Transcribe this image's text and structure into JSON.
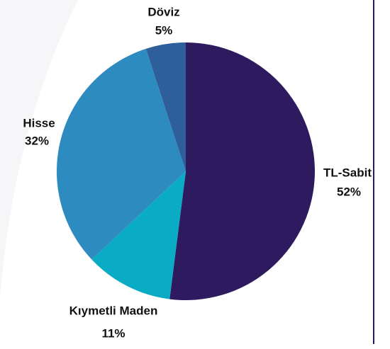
{
  "chart_data": {
    "type": "pie",
    "categories": [
      "TL-Sabit",
      "Kıymetli Maden",
      "Hisse",
      "Döviz"
    ],
    "values": [
      52,
      11,
      32,
      5
    ],
    "value_labels": [
      "52%",
      "11%",
      "32%",
      "5%"
    ],
    "colors": [
      "#2e1a5e",
      "#0aabc4",
      "#2e8bbf",
      "#2f5f9a"
    ]
  }
}
